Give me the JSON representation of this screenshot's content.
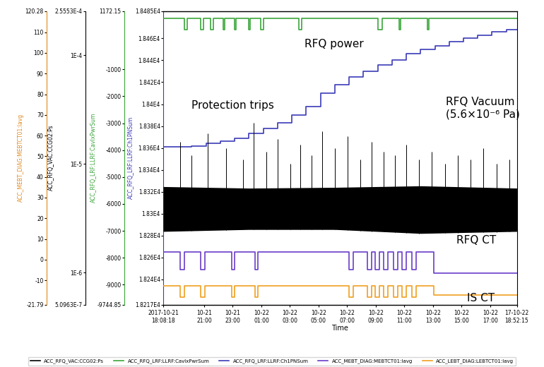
{
  "chart_data": {
    "type": "line",
    "x_label": "Time",
    "xlim": [
      0,
      24.73
    ],
    "xticks": [
      {
        "value": 0,
        "label": "2017-10-21\n18:08:18"
      },
      {
        "value": 2.865,
        "label": "10-21\n21:00"
      },
      {
        "value": 4.865,
        "label": "10-21\n23:00"
      },
      {
        "value": 6.865,
        "label": "10-22\n01:00"
      },
      {
        "value": 8.865,
        "label": "10-22\n03:00"
      },
      {
        "value": 10.865,
        "label": "10-22\n05:00"
      },
      {
        "value": 12.865,
        "label": "10-22\n07:00"
      },
      {
        "value": 14.865,
        "label": "10-22\n09:00"
      },
      {
        "value": 16.865,
        "label": "10-22\n11:00"
      },
      {
        "value": 18.865,
        "label": "10-22\n13:00"
      },
      {
        "value": 20.865,
        "label": "10-22\n15:00"
      },
      {
        "value": 22.865,
        "label": "10-22\n17:00"
      },
      {
        "value": 24.73,
        "label": "17-10-22\n18:52:15"
      }
    ],
    "axes": [
      {
        "axis": "y",
        "label": "ACC_MEBT_DIAG:MEBTCT01:Iavg",
        "color": "#e08a1e",
        "ylim": [
          -21.79,
          120.28
        ],
        "yticks": [
          120.28,
          110,
          100,
          90,
          80,
          70,
          60,
          50,
          40,
          30,
          20,
          10,
          0,
          -10,
          -21.79
        ]
      },
      {
        "axis": "y2",
        "label": "ACC_RFQ_VAC:CCG02:Ps",
        "color": "#000000",
        "log": true,
        "ylim": [
          5.0963e-07,
          0.00025553
        ],
        "yticks": [
          {
            "value": 0.00025553,
            "label": "2.5553E-4"
          },
          {
            "value": 0.0001,
            "label": "1E-4"
          },
          {
            "value": 1e-05,
            "label": "1E-5"
          },
          {
            "value": 1e-06,
            "label": "1E-6"
          },
          {
            "value": 5.0963e-07,
            "label": "5.0963E-7"
          }
        ]
      },
      {
        "axis": "y3",
        "label": "ACC_RFQ_LRF:LLRF:CavIxPwrSum",
        "color": "#3aa53a",
        "ylim": [
          -9744.85,
          1172.15
        ],
        "yticks": [
          1172.15,
          -1000,
          -2000,
          -3000,
          -4000,
          -5000,
          -6000,
          -7000,
          -8000,
          -9000,
          -9744.85
        ]
      },
      {
        "axis": "y4",
        "label": "ACC_RFQ_LRF:LLRF:Ch1PNSum",
        "color": "#3b3bb8",
        "ylim": [
          18217,
          18485
        ],
        "yticks": [
          {
            "value": 18485,
            "label": "1.8485E4"
          },
          {
            "value": 18460,
            "label": "1.846E4"
          },
          {
            "value": 18440,
            "label": "1.844E4"
          },
          {
            "value": 18420,
            "label": "1.842E4"
          },
          {
            "value": 18400,
            "label": "1.84E4"
          },
          {
            "value": 18380,
            "label": "1.838E4"
          },
          {
            "value": 18360,
            "label": "1.836E4"
          },
          {
            "value": 18340,
            "label": "1.834E4"
          },
          {
            "value": 18320,
            "label": "1.832E4"
          },
          {
            "value": 18300,
            "label": "1.83E4"
          },
          {
            "value": 18280,
            "label": "1.828E4"
          },
          {
            "value": 18260,
            "label": "1.826E4"
          },
          {
            "value": 18240,
            "label": "1.824E4"
          },
          {
            "value": 18217,
            "label": "1.8217E4"
          }
        ]
      }
    ],
    "series": [
      {
        "name": "ACC_RFQ_VAC:CCG02:Ps",
        "axis": "y2",
        "type": "band",
        "color": "#000000",
        "x": [
          0,
          6,
          12,
          18,
          24.73
        ],
        "values_low": [
          2.4e-06,
          2.5e-06,
          2.5e-06,
          2.3e-06,
          2.4e-06
        ],
        "values_high": [
          6.2e-06,
          6e-06,
          6.1e-06,
          6.3e-06,
          6e-06
        ],
        "spikes": {
          "x": [
            1.2,
            2.0,
            3.1,
            4.4,
            5.6,
            6.3,
            7.2,
            8.0,
            8.9,
            9.6,
            10.4,
            11.1,
            12.0,
            12.9,
            13.8,
            14.6,
            15.4,
            16.2,
            17.0,
            17.9,
            18.8,
            19.7,
            20.6,
            21.5,
            22.4,
            23.3,
            24.2
          ],
          "values": [
            1.6e-05,
            1.2e-05,
            1.9e-05,
            1.4e-05,
            1.1e-05,
            2.4e-05,
            1.3e-05,
            1.7e-05,
            1e-05,
            1.5e-05,
            1.2e-05,
            2e-05,
            1.4e-05,
            1.8e-05,
            1.1e-05,
            1.6e-05,
            1.3e-05,
            1.2e-05,
            1.5e-05,
            1.1e-05,
            1.3e-05,
            1e-05,
            1.2e-05,
            1.1e-05,
            1.4e-05,
            1e-05,
            1.1e-05
          ]
        }
      },
      {
        "name": "ACC_RFQ_LRF:LLRF:CavIxPwrSum",
        "axis": "y3",
        "type": "line",
        "line_style": "steps",
        "color": "#3aa53a",
        "x": [
          0,
          1.5,
          1.7,
          2.6,
          2.8,
          3.3,
          3.5,
          4.2,
          4.3,
          5.0,
          5.1,
          6.0,
          6.1,
          6.8,
          7.0,
          9.5,
          9.7,
          15.0,
          15.3,
          16.5,
          16.6,
          18.5,
          18.6,
          24.73
        ],
        "values": [
          890,
          470,
          890,
          470,
          890,
          470,
          890,
          470,
          890,
          470,
          890,
          470,
          890,
          470,
          890,
          470,
          890,
          470,
          890,
          470,
          890,
          470,
          890,
          890
        ]
      },
      {
        "name": "ACC_RFQ_LRF:LLRF:Ch1PNSum",
        "axis": "y4",
        "type": "line",
        "line_style": "steps",
        "color": "#3b3bb8",
        "x": [
          0,
          2,
          3,
          4,
          5,
          6,
          7,
          8,
          9,
          10,
          11,
          12,
          13,
          14,
          15,
          16,
          17,
          18,
          19,
          20,
          21,
          22,
          23,
          24,
          24.73
        ],
        "values": [
          18361,
          18362,
          18364,
          18366,
          18369,
          18373,
          18378,
          18383,
          18390,
          18398,
          18410,
          18418,
          18425,
          18430,
          18436,
          18440,
          18446,
          18450,
          18453,
          18457,
          18460,
          18463,
          18466,
          18468,
          18468
        ]
      },
      {
        "name": "ACC_MEBT_DIAG:MEBTCT01:Iavg",
        "axis": "y",
        "type": "line",
        "line_style": "steps",
        "color": "#6a3dc8",
        "x": [
          0,
          1.2,
          1.5,
          2.6,
          2.9,
          4.8,
          5.0,
          6.4,
          6.6,
          13.0,
          13.3,
          14.3,
          14.6,
          14.8,
          15.1,
          15.4,
          15.7,
          16.1,
          16.4,
          16.7,
          17.0,
          17.4,
          17.7,
          18.9,
          24.73
        ],
        "values": [
          3.8,
          -5.0,
          3.8,
          -5.0,
          3.8,
          -5.0,
          3.8,
          -5.0,
          3.8,
          -5.0,
          3.8,
          -5.0,
          3.8,
          -5.0,
          3.8,
          -5.0,
          3.8,
          -5.0,
          3.8,
          -5.0,
          3.8,
          -5.0,
          3.8,
          -6.5,
          -6.5
        ]
      },
      {
        "name": "ACC_LEBT_DIAG:LEBTCT01:Iavg",
        "axis": "y",
        "type": "line",
        "line_style": "steps",
        "color": "#f0a020",
        "x": [
          0,
          1.2,
          1.5,
          2.6,
          2.9,
          4.8,
          5.0,
          6.4,
          6.6,
          13.0,
          13.3,
          14.3,
          14.6,
          14.8,
          15.1,
          15.4,
          15.7,
          16.1,
          16.4,
          16.7,
          17.0,
          17.4,
          17.7,
          18.9,
          24.73
        ],
        "values": [
          -12.6,
          -18.0,
          -12.6,
          -18.0,
          -12.6,
          -18.0,
          -12.6,
          -18.0,
          -12.6,
          -18.0,
          -12.6,
          -18.0,
          -12.6,
          -18.0,
          -12.6,
          -18.0,
          -12.6,
          -18.0,
          -12.6,
          -18.0,
          -12.6,
          -18.0,
          -12.6,
          -17.0,
          -17.0
        ]
      }
    ],
    "annotations": [
      "RFQ power",
      "Protection trips",
      "RFQ Vacuum\n(5.6×10⁻⁶ Pa)",
      "RFQ CT",
      "IS CT"
    ],
    "legend": "bottom"
  }
}
